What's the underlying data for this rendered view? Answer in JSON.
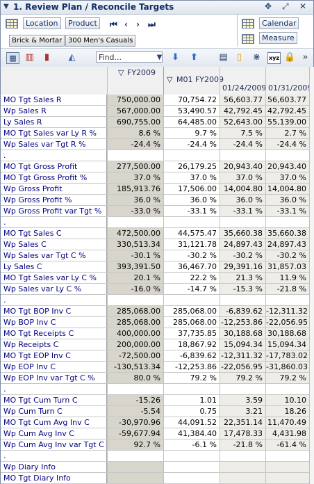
{
  "window": {
    "title": "1. Review Plan / Reconcile Targets"
  },
  "toolbar": {
    "location_label": "Location",
    "product_label": "Product",
    "calendar_label": "Calendar",
    "measure_label": "Measure",
    "location_value": "Brick & Mortar",
    "product_value": "300 Men's Casuals",
    "find_placeholder": "Find..."
  },
  "columns": {
    "fy": "FY2009",
    "m01": "M01 FY2009",
    "w1": "01/24/2009",
    "w2": "01/31/2009"
  },
  "rows": [
    {
      "label": "MO Tgt Sales R",
      "values": [
        "750,000.00",
        "70,754.72",
        "56,603.77",
        "56,603.77"
      ]
    },
    {
      "label": "Wp Sales R",
      "values": [
        "567,000.00",
        "53,490.57",
        "42,792.45",
        "42,792.45"
      ]
    },
    {
      "label": "Ly Sales R",
      "values": [
        "690,755.00",
        "64,485.00",
        "52,643.00",
        "55,139.00"
      ]
    },
    {
      "label": "MO Tgt Sales var Ly R %",
      "values": [
        "8.6 %",
        "9.7 %",
        "7.5 %",
        "2.7 %"
      ]
    },
    {
      "label": "Wp Sales var Tgt R %",
      "values": [
        "-24.4 %",
        "-24.4 %",
        "-24.4 %",
        "-24.4 %"
      ]
    },
    {
      "label": ".",
      "values": [
        "",
        "",
        "",
        ""
      ],
      "blank": true
    },
    {
      "label": "MO Tgt Gross Profit",
      "values": [
        "277,500.00",
        "26,179.25",
        "20,943.40",
        "20,943.40"
      ]
    },
    {
      "label": "MO Tgt Gross Profit %",
      "values": [
        "37.0 %",
        "37.0 %",
        "37.0 %",
        "37.0 %"
      ]
    },
    {
      "label": "Wp Gross Profit",
      "values": [
        "185,913.76",
        "17,506.00",
        "14,004.80",
        "14,004.80"
      ]
    },
    {
      "label": "Wp Gross Profit %",
      "values": [
        "36.0 %",
        "36.0 %",
        "36.0 %",
        "36.0 %"
      ]
    },
    {
      "label": "Wp Gross Profit var Tgt %",
      "values": [
        "-33.0 %",
        "-33.1 %",
        "-33.1 %",
        "-33.1 %"
      ]
    },
    {
      "label": ".",
      "values": [
        "",
        "",
        "",
        ""
      ],
      "blank": true
    },
    {
      "label": "MO Tgt Sales C",
      "values": [
        "472,500.00",
        "44,575.47",
        "35,660.38",
        "35,660.38"
      ]
    },
    {
      "label": "Wp Sales C",
      "values": [
        "330,513.34",
        "31,121.78",
        "24,897.43",
        "24,897.43"
      ]
    },
    {
      "label": "Wp Sales var Tgt C %",
      "values": [
        "-30.1 %",
        "-30.2 %",
        "-30.2 %",
        "-30.2 %"
      ]
    },
    {
      "label": "Ly Sales C",
      "values": [
        "393,391.50",
        "36,467.70",
        "29,391.16",
        "31,857.03"
      ]
    },
    {
      "label": "MO Tgt Sales var Ly C %",
      "values": [
        "20.1 %",
        "22.2 %",
        "21.3 %",
        "11.9 %"
      ]
    },
    {
      "label": "Wp Sales var Ly C %",
      "values": [
        "-16.0 %",
        "-14.7 %",
        "-15.3 %",
        "-21.8 %"
      ]
    },
    {
      "label": ".",
      "values": [
        "",
        "",
        "",
        ""
      ],
      "blank": true
    },
    {
      "label": "MO Tgt BOP Inv C",
      "values": [
        "285,068.00",
        "285,068.00",
        "-6,839.62",
        "-12,311.32"
      ]
    },
    {
      "label": "Wp BOP Inv C",
      "values": [
        "285,068.00",
        "285,068.00",
        "-12,253.86",
        "-22,056.95"
      ]
    },
    {
      "label": "MO Tgt Receipts C",
      "values": [
        "400,000.00",
        "37,735.85",
        "30,188.68",
        "30,188.68"
      ]
    },
    {
      "label": "Wp Receipts C",
      "values": [
        "200,000.00",
        "18,867.92",
        "15,094.34",
        "15,094.34"
      ]
    },
    {
      "label": "MO Tgt EOP Inv C",
      "values": [
        "-72,500.00",
        "-6,839.62",
        "-12,311.32",
        "-17,783.02"
      ]
    },
    {
      "label": "Wp EOP Inv C",
      "values": [
        "-130,513.34",
        "-12,253.86",
        "-22,056.95",
        "-31,860.03"
      ]
    },
    {
      "label": "Wp EOP Inv var Tgt C %",
      "values": [
        "80.0 %",
        "79.2 %",
        "79.2 %",
        "79.2 %"
      ]
    },
    {
      "label": ".",
      "values": [
        "",
        "",
        "",
        ""
      ],
      "blank": true
    },
    {
      "label": "MO Tgt Cum Turn C",
      "values": [
        "-15.26",
        "1.01",
        "3.59",
        "10.10"
      ]
    },
    {
      "label": "Wp Cum Turn C",
      "values": [
        "-5.54",
        "0.75",
        "3.21",
        "18.26"
      ]
    },
    {
      "label": "MO Tgt Cum Avg Inv C",
      "values": [
        "-30,970.96",
        "44,091.52",
        "22,351.14",
        "11,470.49"
      ]
    },
    {
      "label": "Wp Cum Avg Inv C",
      "values": [
        "-59,677.94",
        "41,384.40",
        "17,478.33",
        "4,431.98"
      ]
    },
    {
      "label": "Wp Cum Avg Inv var Tgt C %",
      "values": [
        "92.7 %",
        "-6.1 %",
        "-21.8 %",
        "-61.4 %"
      ]
    },
    {
      "label": ".",
      "values": [
        "",
        "",
        "",
        ""
      ],
      "blank": true
    },
    {
      "label": "Wp Diary Info",
      "values": [
        "",
        "",
        "",
        ""
      ]
    },
    {
      "label": "MO Tgt Diary Info",
      "values": [
        "",
        "",
        "",
        ""
      ]
    }
  ]
}
